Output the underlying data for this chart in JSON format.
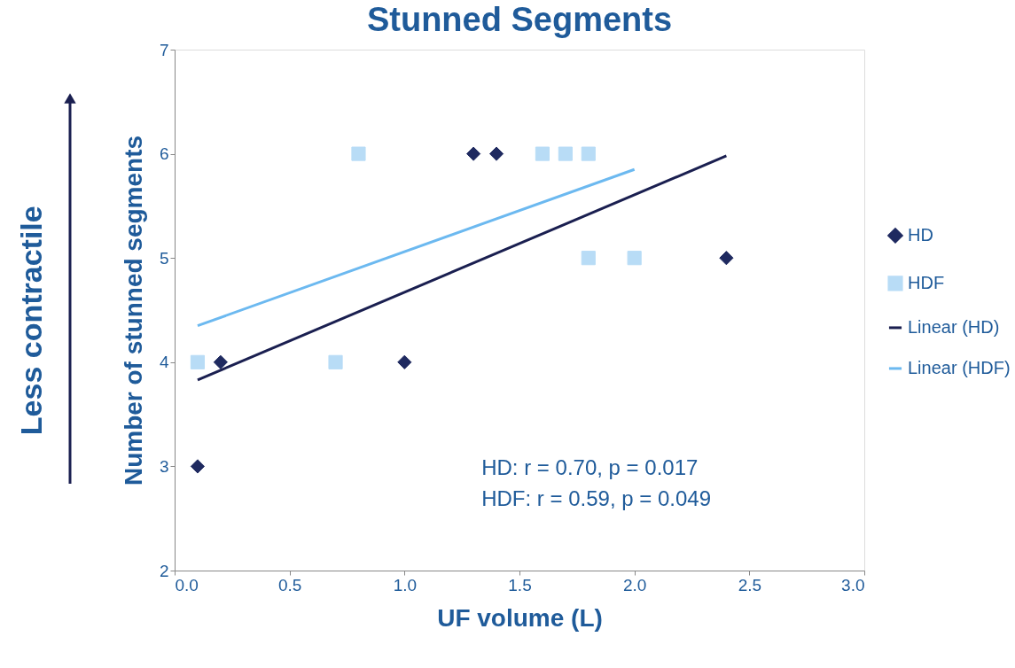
{
  "chart_data": {
    "type": "scatter",
    "title": "Stunned Segments",
    "xlabel": "UF volume (L)",
    "ylabel": "Number of stunned segments",
    "xlim": [
      0,
      3
    ],
    "xticks": [
      {
        "value": 0,
        "label": "0.0"
      },
      {
        "value": 0.5,
        "label": "0.5"
      },
      {
        "value": 1,
        "label": "1.0"
      },
      {
        "value": 1.5,
        "label": "1.5"
      },
      {
        "value": 2,
        "label": "2.0"
      },
      {
        "value": 2.5,
        "label": "2.5"
      },
      {
        "value": 3,
        "label": "3.0"
      }
    ],
    "ylim": [
      2,
      7
    ],
    "yticks": [
      2,
      3,
      4,
      5,
      6,
      7
    ],
    "grid": false,
    "legend": "right",
    "series": [
      {
        "name": "HD",
        "marker": "diamond",
        "color": "#1f2a60",
        "x": [
          0.1,
          0.2,
          1.0,
          1.3,
          1.4,
          2.4
        ],
        "values": [
          3,
          4,
          4,
          6,
          6,
          5
        ]
      },
      {
        "name": "HDF",
        "marker": "square",
        "color": "#b8dcf6",
        "x": [
          0.1,
          0.7,
          0.8,
          1.6,
          1.7,
          1.8,
          1.8,
          2.0
        ],
        "values": [
          4,
          4,
          6,
          6,
          6,
          6,
          5,
          5
        ]
      },
      {
        "name": "Linear (HD)",
        "type": "line",
        "color": "#1a1f50",
        "x": [
          0.1,
          2.4
        ],
        "values": [
          3.83,
          5.98
        ]
      },
      {
        "name": "Linear (HDF)",
        "type": "line",
        "color": "#6cb9f0",
        "x": [
          0.1,
          2.0
        ],
        "values": [
          4.35,
          5.85
        ]
      }
    ],
    "annotations": [
      "HD:  r =  0.70, p = 0.017",
      "HDF: r = 0.59, p = 0.049",
      "Less contractile"
    ]
  }
}
